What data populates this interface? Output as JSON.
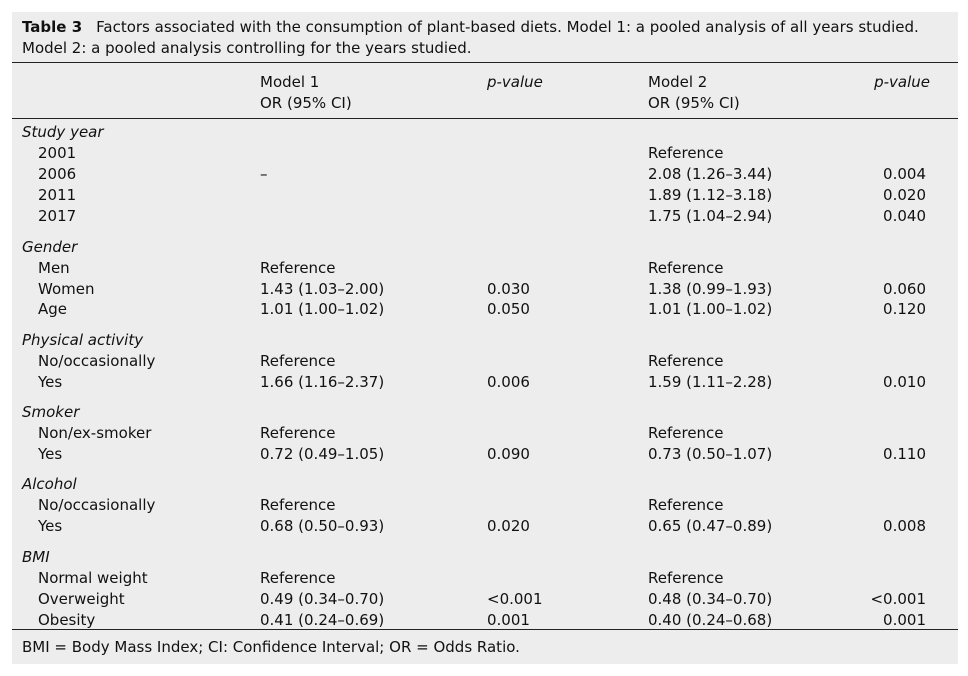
{
  "caption": {
    "label": "Table 3",
    "text": "Factors associated with the consumption of plant-based diets. Model 1: a pooled analysis of all years studied. Model 2: a pooled analysis controlling for the years studied."
  },
  "headers": {
    "model1": "Model 1",
    "model1_sub": "OR (95% CI)",
    "p1": "p-value",
    "model2": "Model 2",
    "model2_sub": "OR (95% CI)",
    "p2": "p-value"
  },
  "rows": [
    {
      "label": "Study year",
      "type": "section"
    },
    {
      "label": "2001",
      "m1": "",
      "p1": "",
      "m2": "Reference",
      "p2": ""
    },
    {
      "label": "2006",
      "m1": "–",
      "p1": "",
      "m2": "2.08 (1.26–3.44)",
      "p2": "0.004"
    },
    {
      "label": "2011",
      "m1": "",
      "p1": "",
      "m2": "1.89 (1.12–3.18)",
      "p2": "0.020"
    },
    {
      "label": "2017",
      "m1": "",
      "p1": "",
      "m2": "1.75 (1.04–2.94)",
      "p2": "0.040"
    },
    {
      "label": "Gender",
      "type": "section"
    },
    {
      "label": "Men",
      "m1": "Reference",
      "p1": "",
      "m2": "Reference",
      "p2": ""
    },
    {
      "label": "Women",
      "m1": "1.43 (1.03–2.00)",
      "p1": "0.030",
      "m2": "1.38 (0.99–1.93)",
      "p2": "0.060"
    },
    {
      "label": "Age",
      "m1": "1.01 (1.00–1.02)",
      "p1": "0.050",
      "m2": "1.01 (1.00–1.02)",
      "p2": "0.120"
    },
    {
      "label": "Physical activity",
      "type": "section"
    },
    {
      "label": "No/occasionally",
      "m1": "Reference",
      "p1": "",
      "m2": "Reference",
      "p2": ""
    },
    {
      "label": "Yes",
      "m1": "1.66 (1.16–2.37)",
      "p1": "0.006",
      "m2": "1.59 (1.11–2.28)",
      "p2": "0.010"
    },
    {
      "label": "Smoker",
      "type": "section"
    },
    {
      "label": "Non/ex-smoker",
      "m1": "Reference",
      "p1": "",
      "m2": "Reference",
      "p2": ""
    },
    {
      "label": "Yes",
      "m1": "0.72 (0.49–1.05)",
      "p1": "0.090",
      "m2": "0.73 (0.50–1.07)",
      "p2": "0.110"
    },
    {
      "label": "Alcohol",
      "type": "section"
    },
    {
      "label": "No/occasionally",
      "m1": "Reference",
      "p1": "",
      "m2": "Reference",
      "p2": ""
    },
    {
      "label": "Yes",
      "m1": "0.68 (0.50–0.93)",
      "p1": "0.020",
      "m2": "0.65 (0.47–0.89)",
      "p2": "0.008"
    },
    {
      "label": "BMI",
      "type": "section"
    },
    {
      "label": "Normal weight",
      "m1": "Reference",
      "p1": "",
      "m2": "Reference",
      "p2": ""
    },
    {
      "label": "Overweight",
      "m1": "0.49 (0.34–0.70)",
      "p1": "<0.001",
      "m2": "0.48 (0.34–0.70)",
      "p2": "<0.001"
    },
    {
      "label": "Obesity",
      "m1": "0.41 (0.24–0.69)",
      "p1": "0.001",
      "m2": "0.40 (0.24–0.68)",
      "p2": "0.001"
    }
  ],
  "footnote": "BMI = Body Mass Index; CI: Confidence Interval; OR = Odds Ratio."
}
